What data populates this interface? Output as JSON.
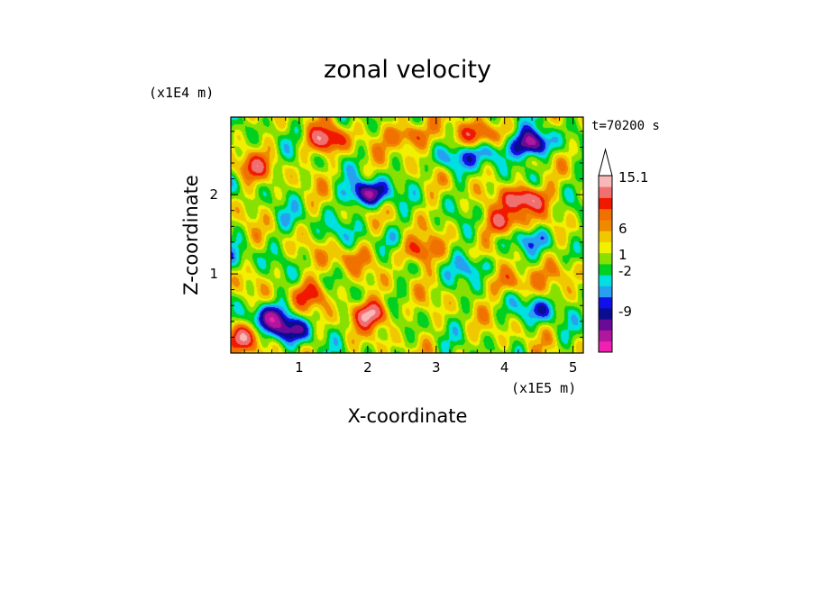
{
  "chart_data": {
    "type": "heatmap",
    "title": "zonal velocity",
    "xlabel": "X-coordinate",
    "ylabel": "Z-coordinate",
    "x_unit": "(x1E5 m)",
    "y_unit": "(x1E4 m)",
    "time_label": "t=70200 s",
    "xlim": [
      0,
      5.15
    ],
    "ylim": [
      0,
      2.98
    ],
    "x_ticks": [
      1,
      2,
      3,
      4,
      5
    ],
    "y_ticks": [
      1,
      2
    ],
    "x_tick_labels": [
      "1",
      "2",
      "3",
      "4",
      "5"
    ],
    "y_tick_labels": [
      "1",
      "2"
    ],
    "colorbar": {
      "colors": [
        "#f020b0",
        "#b0169e",
        "#6a0a98",
        "#0c0c90",
        "#1010e8",
        "#28a0f0",
        "#00e0e0",
        "#00d020",
        "#88e000",
        "#f0f000",
        "#f0c800",
        "#f08800",
        "#f07000",
        "#f01800",
        "#f07070",
        "#f8b8b8",
        "#ffffff"
      ],
      "tick_labels": [
        "15.1",
        "6",
        "1",
        "-2",
        "-9"
      ],
      "tick_values": [
        15.1,
        6,
        1,
        -2,
        -9
      ]
    },
    "hotspots": [
      {
        "x": 2.0,
        "z": 2.02,
        "u": -12
      },
      {
        "x": 4.4,
        "z": 2.65,
        "u": -12
      },
      {
        "x": 3.8,
        "z": 2.55,
        "u": -6
      },
      {
        "x": 3.2,
        "z": 2.45,
        "u": -5
      },
      {
        "x": 0.55,
        "z": 0.45,
        "u": -9
      },
      {
        "x": 0.9,
        "z": 0.3,
        "u": -9
      },
      {
        "x": 4.5,
        "z": 0.55,
        "u": -6
      },
      {
        "x": 3.55,
        "z": 1.1,
        "u": -5
      },
      {
        "x": 4.45,
        "z": 1.45,
        "u": -5
      },
      {
        "x": 0.1,
        "z": 1.2,
        "u": -3
      },
      {
        "x": 2.05,
        "z": 0.5,
        "u": 10
      },
      {
        "x": 4.3,
        "z": 1.95,
        "u": 12
      },
      {
        "x": 4.0,
        "z": 1.65,
        "u": 8
      },
      {
        "x": 1.4,
        "z": 2.7,
        "u": 9
      },
      {
        "x": 2.6,
        "z": 2.75,
        "u": 8
      },
      {
        "x": 3.55,
        "z": 2.75,
        "u": 7
      },
      {
        "x": 0.3,
        "z": 2.35,
        "u": 6
      },
      {
        "x": 1.2,
        "z": 0.75,
        "u": 6
      },
      {
        "x": 2.7,
        "z": 1.3,
        "u": 7
      },
      {
        "x": 0.15,
        "z": 0.2,
        "u": 7
      },
      {
        "x": 4.1,
        "z": 0.9,
        "u": 5
      },
      {
        "x": 1.7,
        "z": 1.2,
        "u": 4
      },
      {
        "x": 4.9,
        "z": 1.05,
        "u": 4
      },
      {
        "x": 1.5,
        "z": 1.55,
        "u": -2
      },
      {
        "x": 2.3,
        "z": 1.45,
        "u": -2
      },
      {
        "x": 0.9,
        "z": 1.7,
        "u": -2
      }
    ]
  }
}
